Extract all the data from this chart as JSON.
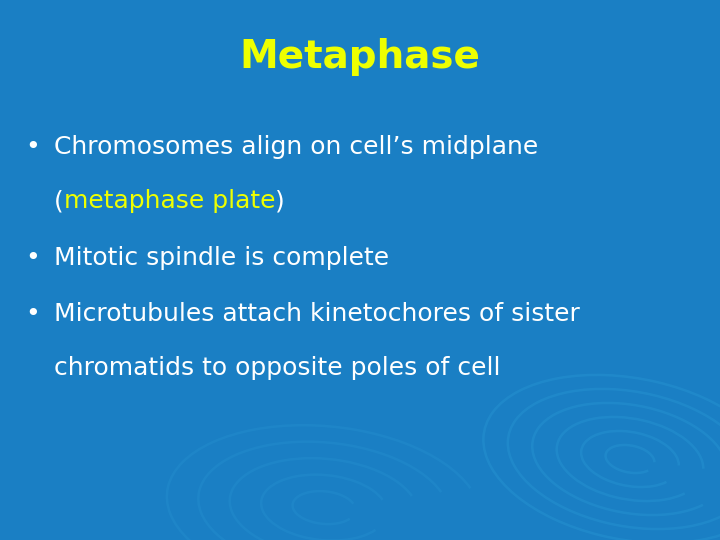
{
  "title": "Metaphase",
  "title_color": "#EEFF00",
  "title_fontsize": 28,
  "background_color": "#1a7fc4",
  "swirl_color": "#2d9fd8",
  "bullet_color": "#FFFFFF",
  "yellow_color": "#EEFF00",
  "bullet_fontsize": 18,
  "figsize": [
    7.2,
    5.4
  ],
  "dpi": 100,
  "bullet_dot": "•",
  "line1_white": "Chromosomes align on cell’s midplane",
  "line2_paren_open": "(",
  "line2_yellow": "metaphase plate",
  "line2_paren_close": ")",
  "bullet2": "Mitotic spindle is complete",
  "bullet3_line1": "Microtubules attach kinetochores of sister",
  "bullet3_line2": "chromatids to opposite poles of cell"
}
